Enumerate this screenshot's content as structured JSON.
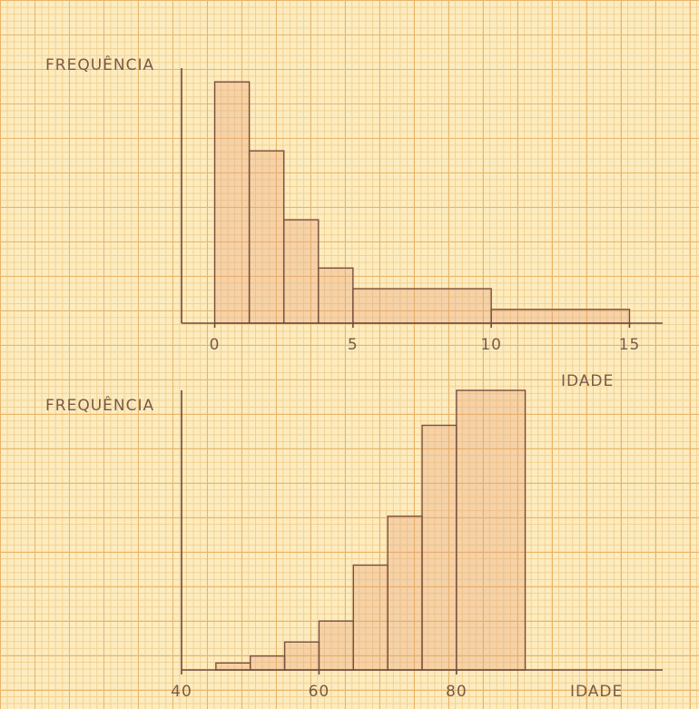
{
  "chart_data": [
    {
      "type": "histogram",
      "ylabel": "FREQUÊNCIA",
      "xlabel": "IDADE",
      "bins": [
        0,
        1.25,
        2.5,
        3.75,
        5,
        10,
        15
      ],
      "counts": [
        35,
        25,
        15,
        8,
        5,
        2
      ],
      "color": "#e8a27a",
      "xlim": [
        -1.2,
        16.2
      ],
      "ylim": [
        0,
        37
      ],
      "xticks": [
        0,
        5,
        10,
        15
      ]
    },
    {
      "type": "histogram",
      "ylabel": "FREQUÊNCIA",
      "xlabel": "IDADE",
      "bins": [
        45,
        50,
        55,
        60,
        65,
        70,
        75,
        80,
        90
      ],
      "counts": [
        1,
        2,
        4,
        7,
        15,
        22,
        35,
        40
      ],
      "color": "#e8a27a",
      "xlim": [
        40,
        110
      ],
      "ylim": [
        0,
        40
      ],
      "xticks": [
        40,
        60,
        80
      ]
    }
  ]
}
